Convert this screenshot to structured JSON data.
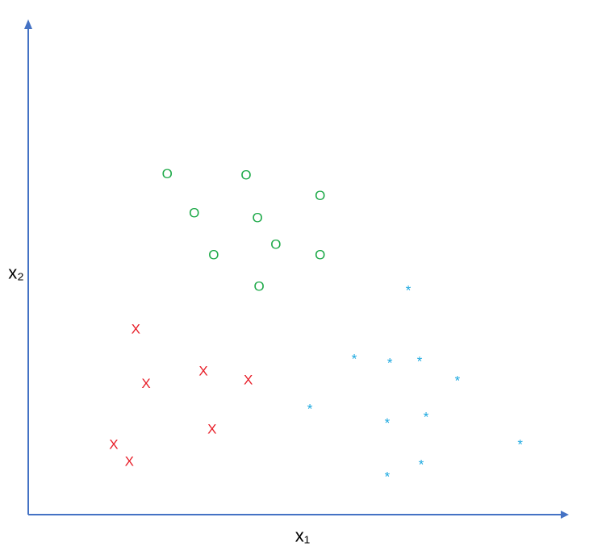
{
  "chart_data": {
    "type": "scatter",
    "x_label": "x₁",
    "y_label": "x₂",
    "xlim": [
      0,
      100
    ],
    "ylim": [
      0,
      100
    ],
    "axis_color": "#4472c4",
    "series": [
      {
        "marker": "O",
        "color": "#1faa4a",
        "x": [
          25.7,
          40.3,
          54.0,
          30.7,
          42.4,
          45.8,
          34.3,
          54.0,
          42.7
        ],
        "values": [
          69.3,
          69.0,
          64.8,
          61.3,
          60.3,
          54.9,
          52.8,
          52.8,
          46.4
        ]
      },
      {
        "marker": "X",
        "color": "#e8202a",
        "x": [
          19.9,
          21.8,
          32.4,
          40.7,
          34.0,
          15.8,
          18.7
        ],
        "values": [
          37.7,
          26.6,
          29.2,
          27.4,
          17.4,
          14.3,
          10.8
        ]
      },
      {
        "marker": "*",
        "color": "#1ba8e0",
        "x": [
          70.3,
          60.3,
          66.9,
          72.4,
          79.4,
          52.1,
          66.4,
          73.6,
          91.0,
          66.4,
          72.7
        ],
        "values": [
          46.2,
          32.3,
          31.5,
          31.8,
          27.9,
          22.1,
          19.3,
          20.5,
          14.9,
          8.4,
          10.8
        ]
      }
    ]
  }
}
